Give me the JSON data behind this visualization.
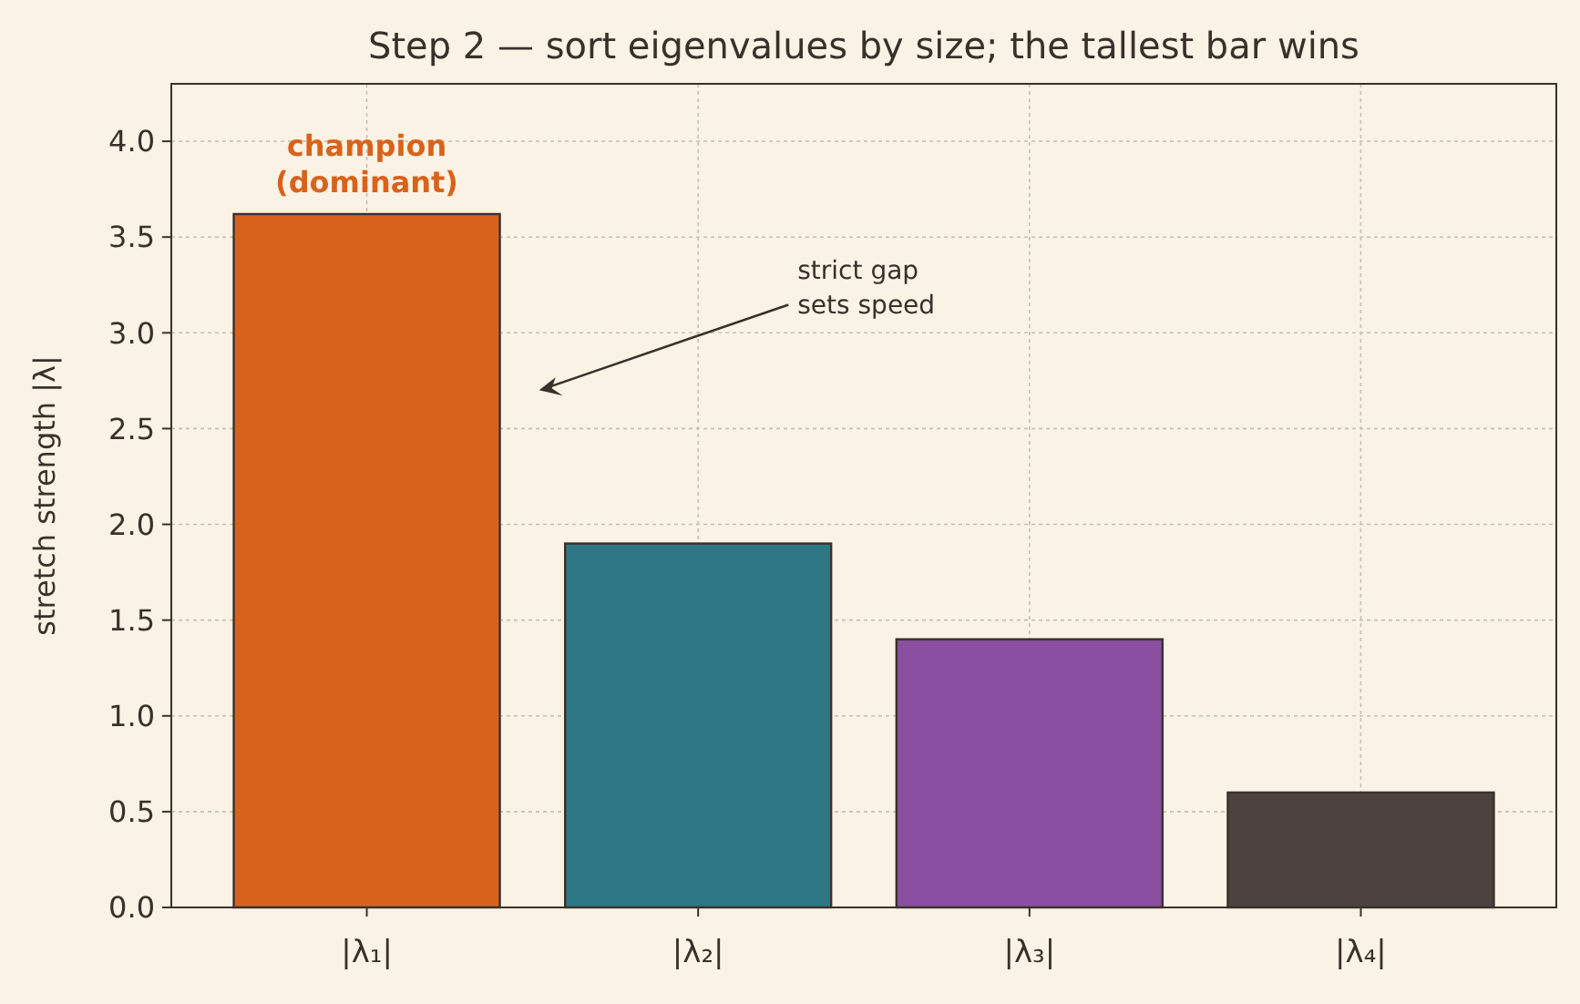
{
  "chart_data": {
    "type": "bar",
    "title": "Step 2 — sort eigenvalues by size; the tallest bar wins",
    "ylabel": "stretch strength  |λ|",
    "categories": [
      "|λ₁|",
      "|λ₂|",
      "|λ₃|",
      "|λ₄|"
    ],
    "values": [
      3.62,
      1.9,
      1.4,
      0.6
    ],
    "colors": [
      "#d9621a",
      "#2e7785",
      "#8a4fa0",
      "#4e4240"
    ],
    "ylim": [
      0,
      4.3
    ],
    "yticks": [
      {
        "value": 0,
        "label": "0.0"
      },
      {
        "value": 0.5,
        "label": "0.5"
      },
      {
        "value": 1,
        "label": "1.0"
      },
      {
        "value": 1.5,
        "label": "1.5"
      },
      {
        "value": 2,
        "label": "2.0"
      },
      {
        "value": 2.5,
        "label": "2.5"
      },
      {
        "value": 3,
        "label": "3.0"
      },
      {
        "value": 3.5,
        "label": "3.5"
      },
      {
        "value": 4,
        "label": "4.0"
      }
    ],
    "grid": true,
    "annotations": [
      {
        "text": "champion\n(dominant)",
        "x": "|λ₁|",
        "y": 3.62
      },
      "strict gap\nsets speed"
    ]
  }
}
